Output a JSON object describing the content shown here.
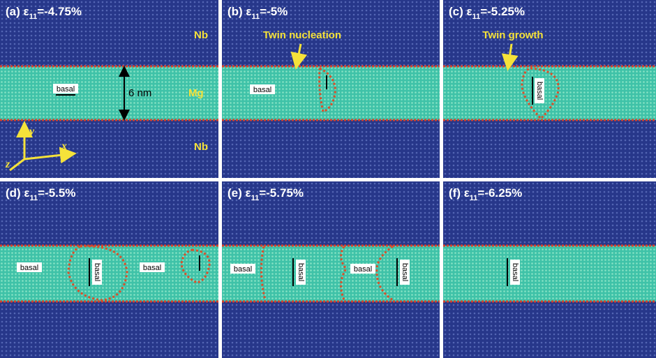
{
  "panels": [
    {
      "label": {
        "prefix": "(a) ε",
        "sub": "11",
        "strain": "=-4.75%"
      },
      "annotations": [
        "basal",
        "6 nm",
        "Mg",
        "Nb",
        "Nb",
        "y",
        "x",
        "z"
      ]
    },
    {
      "label": {
        "prefix": "(b) ε",
        "sub": "11",
        "strain": "=-5%"
      },
      "annotations": [
        "basal",
        "Twin nucleation"
      ]
    },
    {
      "label": {
        "prefix": "(c) ε",
        "sub": "11",
        "strain": "=-5.25%"
      },
      "annotations": [
        "basal",
        "Twin growth"
      ]
    },
    {
      "label": {
        "prefix": "(d) ε",
        "sub": "11",
        "strain": "=-5.5%"
      },
      "annotations": [
        "basal",
        "basal",
        "basal"
      ]
    },
    {
      "label": {
        "prefix": "(e) ε",
        "sub": "11",
        "strain": "=-5.75%"
      },
      "annotations": [
        "basal",
        "basal",
        "basal",
        "basal"
      ]
    },
    {
      "label": {
        "prefix": "(f) ε",
        "sub": "11",
        "strain": "=-6.25%"
      },
      "annotations": [
        "basal"
      ]
    }
  ]
}
